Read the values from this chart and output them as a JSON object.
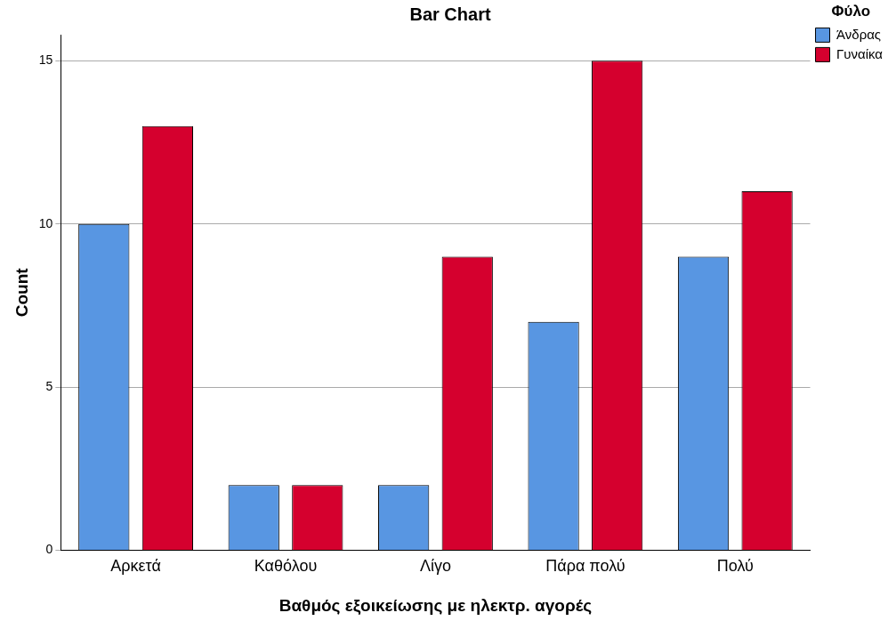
{
  "chart_data": {
    "type": "bar",
    "title": "Bar Chart",
    "xlabel": "Βαθμός εξοικείωσης με ηλεκτρ. αγορές",
    "ylabel": "Count",
    "legend_title": "Φύλο",
    "categories": [
      "Αρκετά",
      "Καθόλου",
      "Λίγο",
      "Πάρα πολύ",
      "Πολύ"
    ],
    "series": [
      {
        "name": "Άνδρας",
        "color": "#5896e2",
        "values": [
          10,
          2,
          2,
          7,
          9
        ]
      },
      {
        "name": "Γυναίκα",
        "color": "#d5002e",
        "values": [
          13,
          2,
          9,
          15,
          11
        ]
      }
    ],
    "ylim": [
      0,
      15.8
    ],
    "yticks": [
      0,
      5,
      10,
      15
    ],
    "grid": "y",
    "legend": "top right"
  }
}
